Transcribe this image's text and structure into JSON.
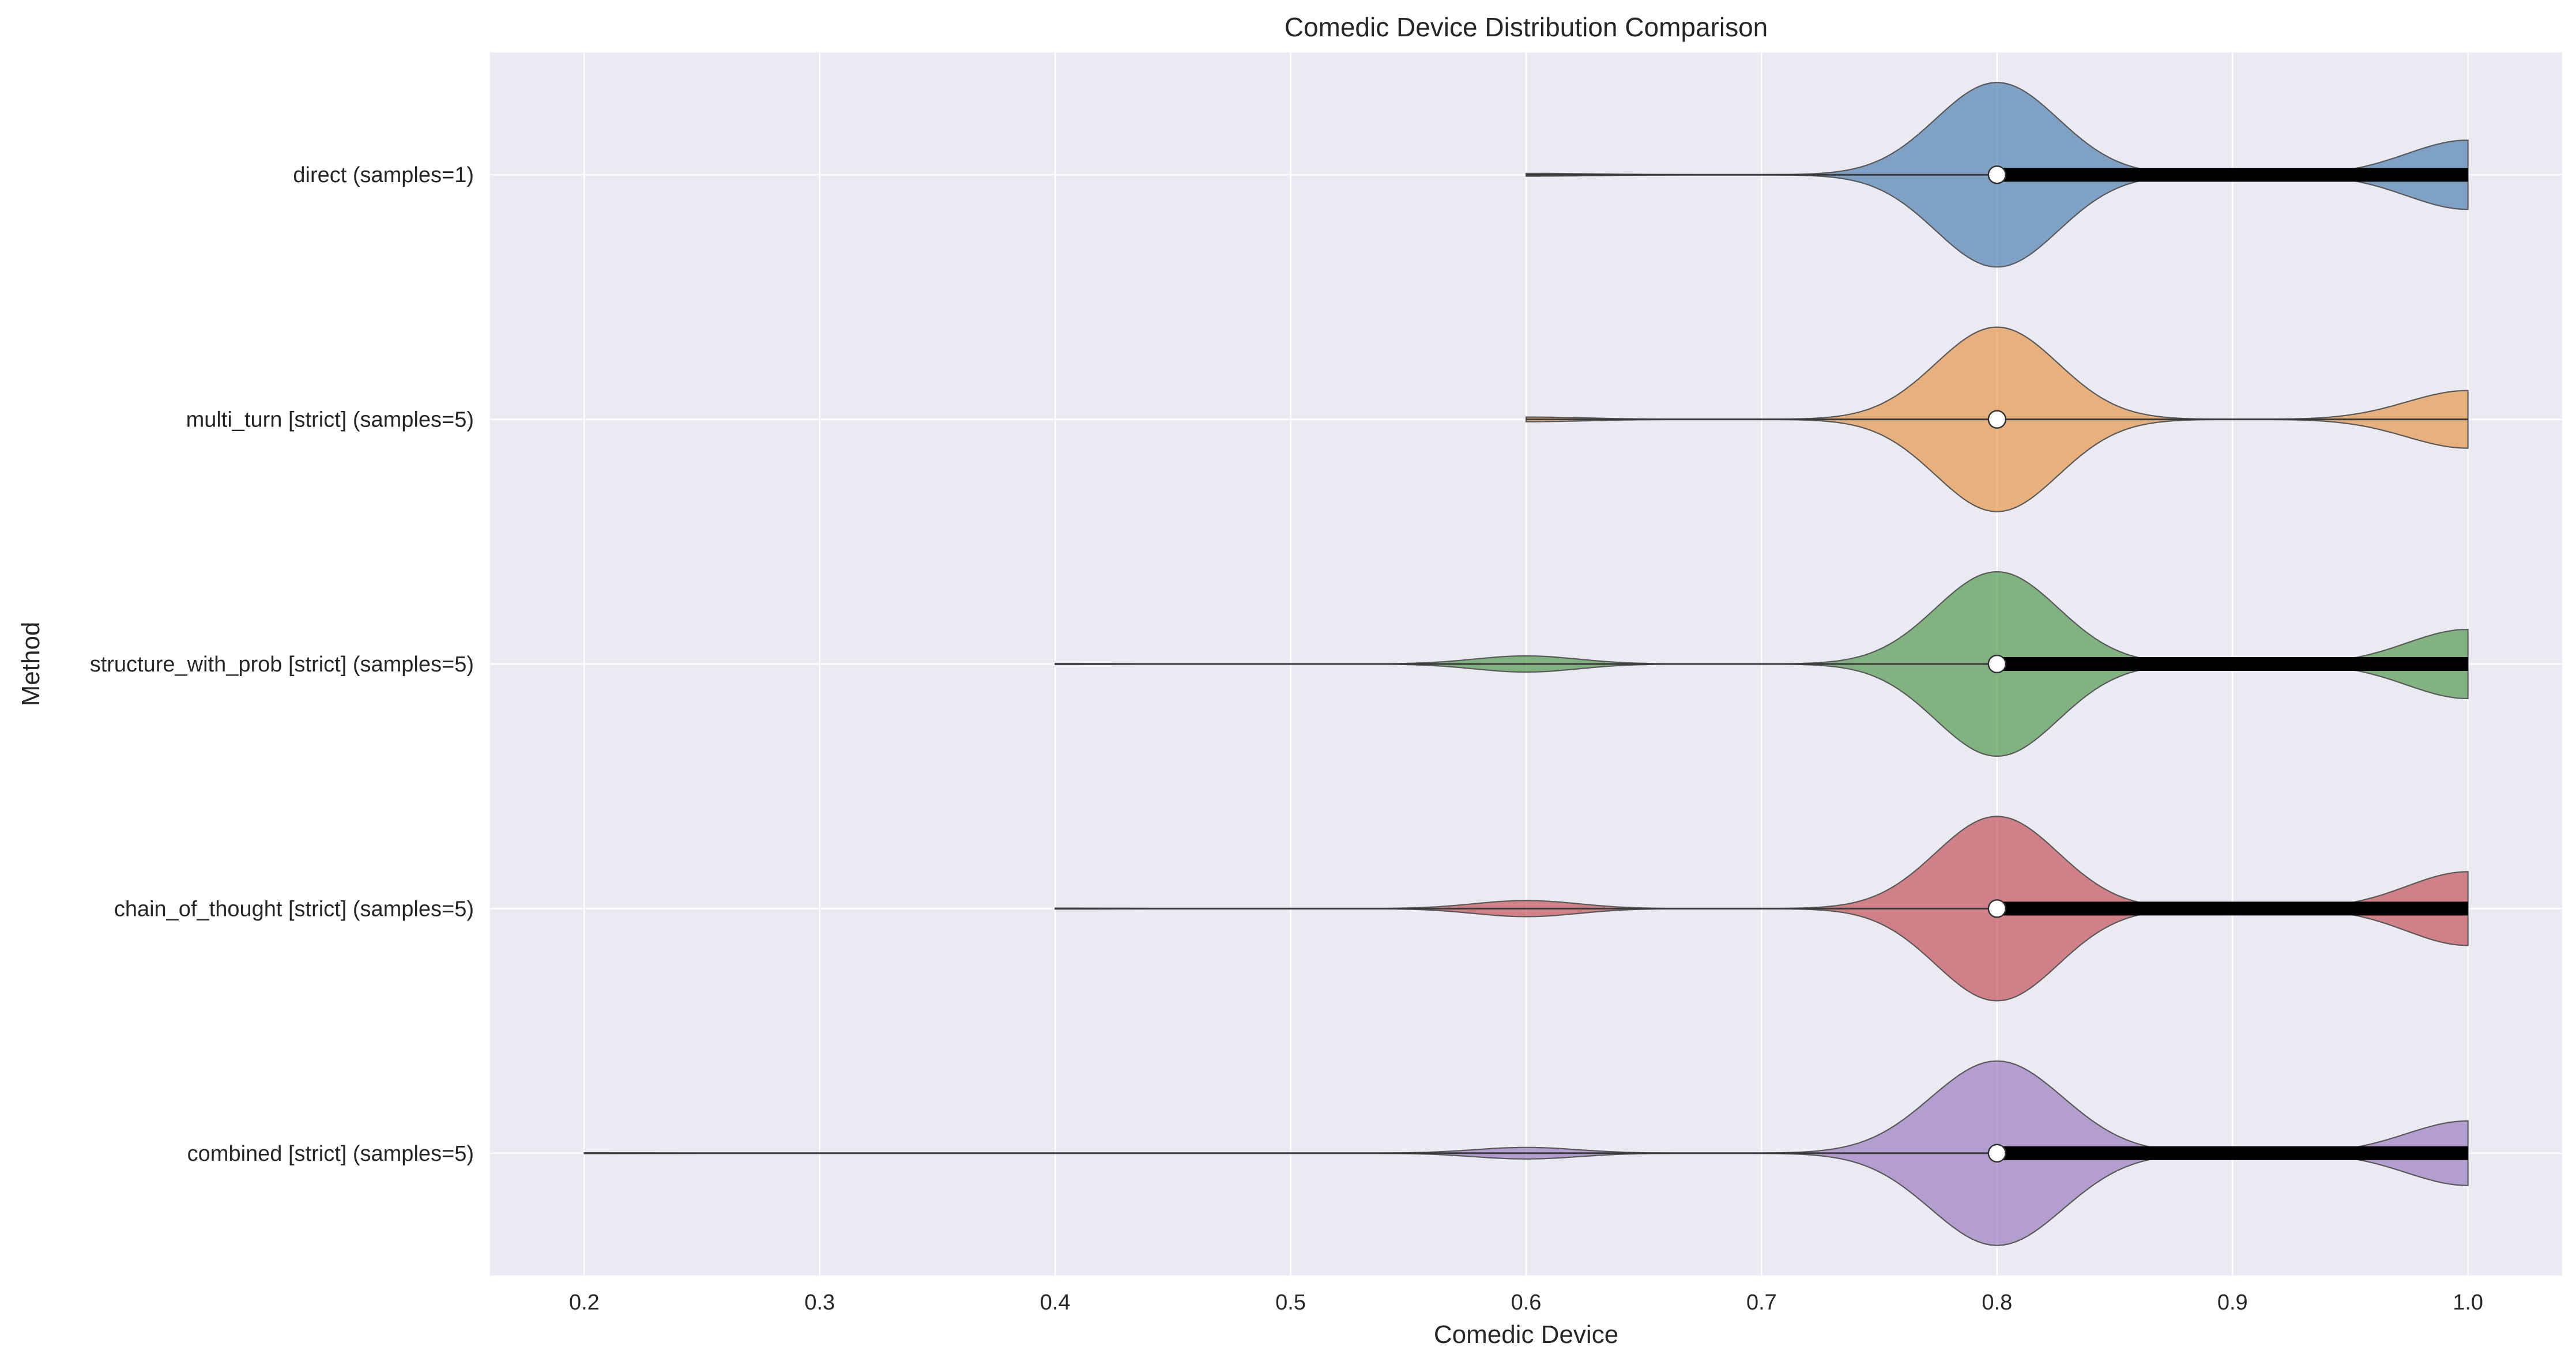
{
  "chart_data": {
    "type": "violin",
    "orientation": "horizontal",
    "title": "Comedic Device Distribution Comparison",
    "xlabel": "Comedic Device",
    "ylabel": "Method",
    "xlim": [
      0.16,
      1.04
    ],
    "xticks": [
      "0.2",
      "0.3",
      "0.4",
      "0.5",
      "0.6",
      "0.7",
      "0.8",
      "0.9",
      "1.0"
    ],
    "grid": true,
    "categories": [
      "direct (samples=1)",
      "multi_turn [strict] (samples=5)",
      "structure_with_prob [strict] (samples=5)",
      "chain_of_thought [strict] (samples=5)",
      "combined [strict] (samples=5)"
    ],
    "series": [
      {
        "color": "#4C7FAF",
        "median": 0.8,
        "q1": 0.8,
        "q3": 1.0,
        "min": 0.6,
        "max": 1.0,
        "modes": [
          {
            "x": 0.8,
            "s": 0.026,
            "w": 0.8
          },
          {
            "x": 1.0,
            "s": 0.026,
            "w": 0.3
          },
          {
            "x": 0.6,
            "s": 0.03,
            "w": 0.012
          }
        ]
      },
      {
        "color": "#E69545",
        "median": 0.8,
        "q1": 0.8,
        "q3": 0.8,
        "min": 0.6,
        "max": 1.0,
        "modes": [
          {
            "x": 0.8,
            "s": 0.026,
            "w": 0.8
          },
          {
            "x": 1.0,
            "s": 0.026,
            "w": 0.25
          },
          {
            "x": 0.6,
            "s": 0.026,
            "w": 0.02
          }
        ]
      },
      {
        "color": "#4F9A4A",
        "median": 0.8,
        "q1": 0.8,
        "q3": 1.0,
        "min": 0.4,
        "max": 1.0,
        "modes": [
          {
            "x": 0.8,
            "s": 0.026,
            "w": 0.8
          },
          {
            "x": 1.0,
            "s": 0.026,
            "w": 0.3
          },
          {
            "x": 0.6,
            "s": 0.022,
            "w": 0.07
          },
          {
            "x": 0.4,
            "s": 0.03,
            "w": 0.004
          }
        ]
      },
      {
        "color": "#C44E52",
        "median": 0.8,
        "q1": 0.8,
        "q3": 1.0,
        "min": 0.4,
        "max": 1.0,
        "modes": [
          {
            "x": 0.8,
            "s": 0.026,
            "w": 0.8
          },
          {
            "x": 1.0,
            "s": 0.026,
            "w": 0.32
          },
          {
            "x": 0.6,
            "s": 0.022,
            "w": 0.07
          },
          {
            "x": 0.4,
            "s": 0.03,
            "w": 0.004
          }
        ]
      },
      {
        "color": "#9B7BBF",
        "median": 0.8,
        "q1": 0.8,
        "q3": 1.0,
        "min": 0.2,
        "max": 1.0,
        "modes": [
          {
            "x": 0.8,
            "s": 0.028,
            "w": 0.8
          },
          {
            "x": 1.0,
            "s": 0.026,
            "w": 0.28
          },
          {
            "x": 0.6,
            "s": 0.022,
            "w": 0.05
          },
          {
            "x": 0.2,
            "s": 0.03,
            "w": 0.003
          }
        ]
      }
    ]
  }
}
